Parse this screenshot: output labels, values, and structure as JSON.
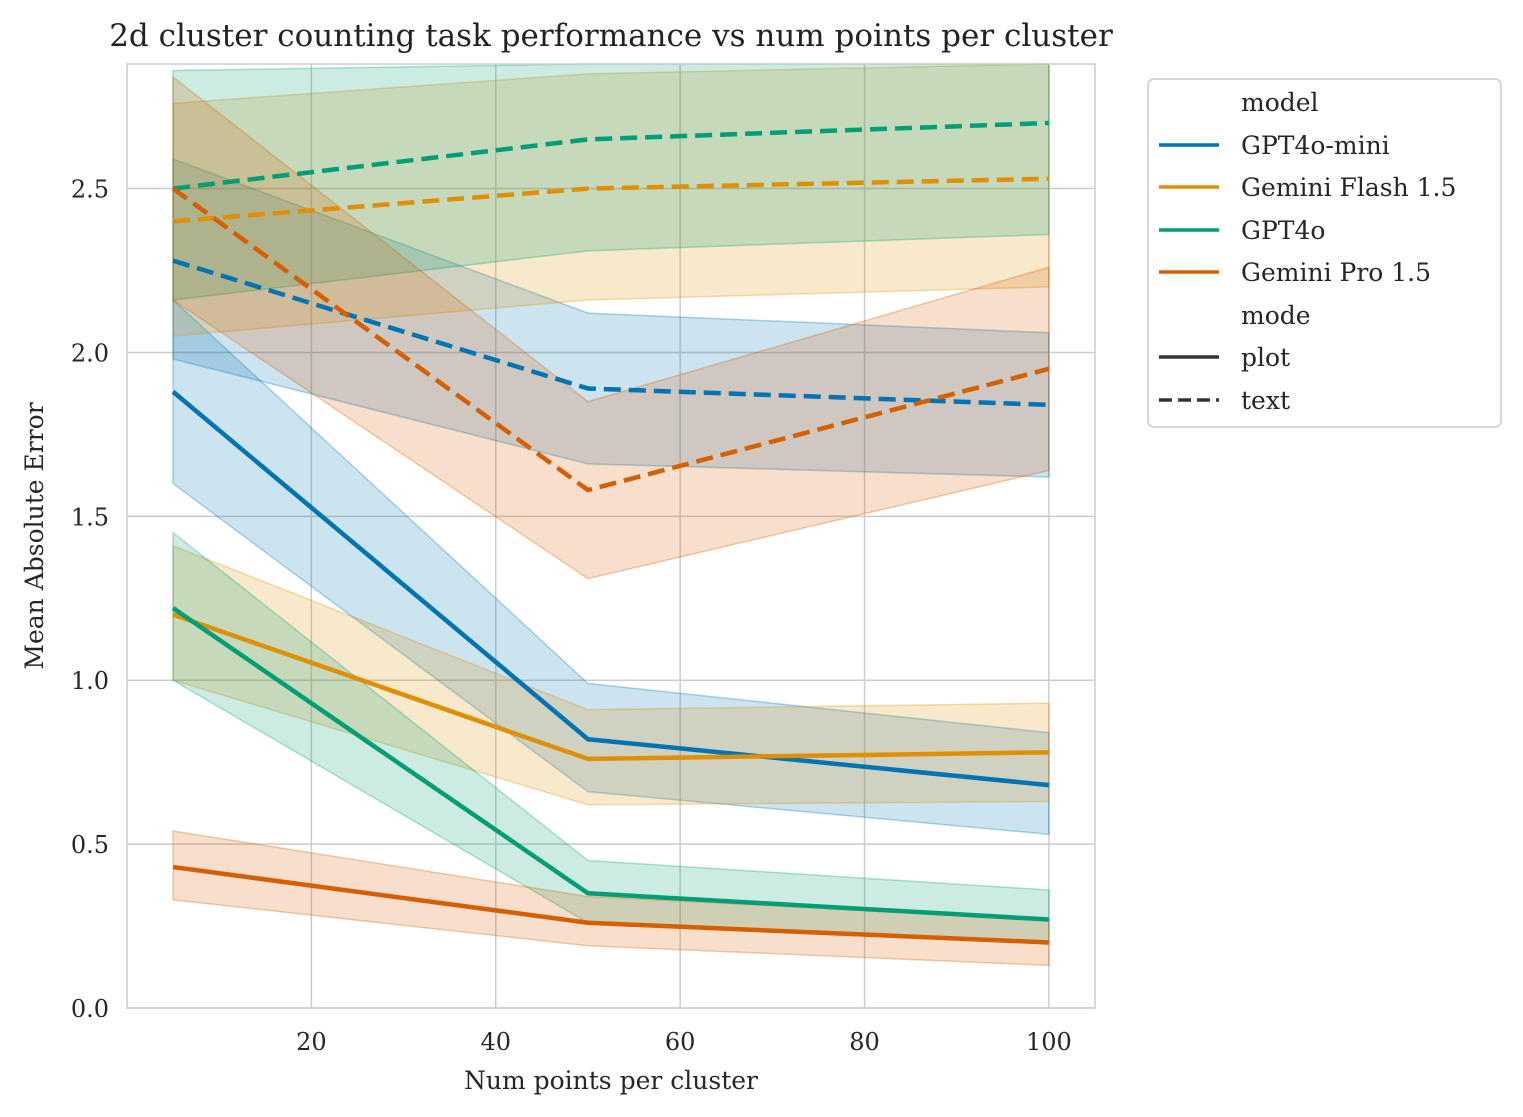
{
  "chart_data": {
    "type": "line",
    "title": "2d cluster counting task performance vs num points per cluster",
    "xlabel": "Num points per cluster",
    "ylabel": "Mean Absolute Error",
    "xlim": [
      0,
      105
    ],
    "ylim": [
      0,
      2.88
    ],
    "xticks": [
      20,
      40,
      60,
      80,
      100
    ],
    "yticks": [
      0.0,
      0.5,
      1.0,
      1.5,
      2.0,
      2.5
    ],
    "xtick_labels": [
      "20",
      "40",
      "60",
      "80",
      "100"
    ],
    "ytick_labels": [
      "0.0",
      "0.5",
      "1.0",
      "1.5",
      "2.0",
      "2.5"
    ],
    "grid": true,
    "legend_position": "outside-right-top",
    "legend": {
      "model_header": "model",
      "mode_header": "mode",
      "models": [
        "GPT4o-mini",
        "Gemini Flash 1.5",
        "GPT4o",
        "Gemini Pro 1.5"
      ],
      "modes": [
        "plot",
        "text"
      ]
    },
    "colors": {
      "GPT4o-mini": "#0173b2",
      "Gemini Flash 1.5": "#de8f05",
      "GPT4o": "#029e73",
      "Gemini Pro 1.5": "#d55e00",
      "legend_mode_line": "#333333"
    },
    "x": [
      5,
      50,
      100
    ],
    "series": [
      {
        "model": "GPT4o-mini",
        "mode": "plot",
        "values": [
          1.88,
          0.82,
          0.68
        ],
        "ci_low": [
          1.6,
          0.66,
          0.53
        ],
        "ci_high": [
          2.16,
          0.99,
          0.84
        ]
      },
      {
        "model": "Gemini Flash 1.5",
        "mode": "plot",
        "values": [
          1.2,
          0.76,
          0.78
        ],
        "ci_low": [
          1.0,
          0.62,
          0.63
        ],
        "ci_high": [
          1.41,
          0.91,
          0.93
        ]
      },
      {
        "model": "GPT4o",
        "mode": "plot",
        "values": [
          1.22,
          0.35,
          0.27
        ],
        "ci_low": [
          1.0,
          0.26,
          0.2
        ],
        "ci_high": [
          1.45,
          0.45,
          0.36
        ]
      },
      {
        "model": "Gemini Pro 1.5",
        "mode": "plot",
        "values": [
          0.43,
          0.26,
          0.2
        ],
        "ci_low": [
          0.33,
          0.19,
          0.13
        ],
        "ci_high": [
          0.54,
          0.34,
          0.27
        ]
      },
      {
        "model": "GPT4o-mini",
        "mode": "text",
        "values": [
          2.28,
          1.89,
          1.84
        ],
        "ci_low": [
          1.98,
          1.66,
          1.62
        ],
        "ci_high": [
          2.59,
          2.12,
          2.06
        ]
      },
      {
        "model": "Gemini Flash 1.5",
        "mode": "text",
        "values": [
          2.4,
          2.5,
          2.53
        ],
        "ci_low": [
          2.05,
          2.16,
          2.2
        ],
        "ci_high": [
          2.76,
          2.85,
          2.88
        ]
      },
      {
        "model": "GPT4o",
        "mode": "text",
        "values": [
          2.5,
          2.65,
          2.7
        ],
        "ci_low": [
          2.16,
          2.31,
          2.36
        ],
        "ci_high": [
          2.86,
          2.95,
          3.0
        ]
      },
      {
        "model": "Gemini Pro 1.5",
        "mode": "text",
        "values": [
          2.5,
          1.58,
          1.95
        ],
        "ci_low": [
          2.16,
          1.31,
          1.64
        ],
        "ci_high": [
          2.84,
          1.85,
          2.26
        ]
      }
    ]
  }
}
